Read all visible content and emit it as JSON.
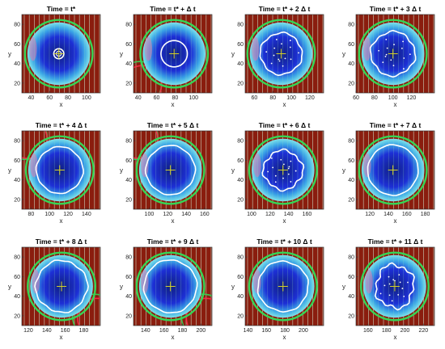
{
  "colors": {
    "background": "#8a1d0e",
    "stripe": "#cfe0c8",
    "blob_inner": "#1d2fd6",
    "blob_edge": "#7de3ea",
    "halo": "#35d655",
    "front": "#ffffff",
    "marker": "#d4d02a",
    "crescent": "#ff2a4a"
  },
  "chart_data": [
    {
      "type": "heatmap",
      "title": "Time = t*",
      "xlabel": "x",
      "ylabel": "y",
      "xticks": [
        40,
        60,
        80,
        100
      ],
      "yticks": [
        20,
        40,
        60,
        80
      ],
      "xlim": [
        30,
        115
      ],
      "ylim": [
        10,
        90
      ],
      "center": [
        70,
        50
      ]
    },
    {
      "type": "heatmap",
      "title": "Time = t* + Δ t",
      "xlabel": "x",
      "ylabel": "y",
      "xticks": [
        40,
        60,
        80,
        100
      ],
      "yticks": [
        20,
        40,
        60,
        80
      ],
      "xlim": [
        35,
        120
      ],
      "ylim": [
        10,
        90
      ],
      "center": [
        79,
        50
      ]
    },
    {
      "type": "heatmap",
      "title": "Time = t* + 2 Δ t",
      "xlabel": "x",
      "ylabel": "y",
      "xticks": [
        60,
        80,
        100,
        120
      ],
      "yticks": [
        20,
        40,
        60,
        80
      ],
      "xlim": [
        50,
        135
      ],
      "ylim": [
        10,
        90
      ],
      "center": [
        89,
        50
      ]
    },
    {
      "type": "heatmap",
      "title": "Time = t* + 3 Δ t",
      "xlabel": "x",
      "ylabel": "y",
      "xticks": [
        60,
        80,
        100,
        120
      ],
      "yticks": [
        20,
        40,
        60,
        80
      ],
      "xlim": [
        60,
        145
      ],
      "ylim": [
        10,
        90
      ],
      "center": [
        100,
        50
      ]
    },
    {
      "type": "heatmap",
      "title": "Time = t* + 4 Δ t",
      "xlabel": "x",
      "ylabel": "y",
      "xticks": [
        80,
        100,
        120,
        140
      ],
      "yticks": [
        20,
        40,
        60,
        80
      ],
      "xlim": [
        70,
        155
      ],
      "ylim": [
        10,
        90
      ],
      "center": [
        111,
        50
      ]
    },
    {
      "type": "heatmap",
      "title": "Time = t* + 5 Δ t",
      "xlabel": "x",
      "ylabel": "y",
      "xticks": [
        100,
        120,
        140,
        160
      ],
      "yticks": [
        20,
        40,
        60,
        80
      ],
      "xlim": [
        83,
        168
      ],
      "ylim": [
        10,
        90
      ],
      "center": [
        123,
        50
      ]
    },
    {
      "type": "heatmap",
      "title": "Time = t* + 6 Δ t",
      "xlabel": "x",
      "ylabel": "y",
      "xticks": [
        100,
        120,
        140,
        160
      ],
      "yticks": [
        20,
        40,
        60,
        80
      ],
      "xlim": [
        93,
        178
      ],
      "ylim": [
        10,
        90
      ],
      "center": [
        134,
        50
      ]
    },
    {
      "type": "heatmap",
      "title": "Time = t* + 7 Δ t",
      "xlabel": "x",
      "ylabel": "y",
      "xticks": [
        120,
        140,
        160,
        180
      ],
      "yticks": [
        20,
        40,
        60,
        80
      ],
      "xlim": [
        105,
        190
      ],
      "ylim": [
        10,
        90
      ],
      "center": [
        145,
        50
      ]
    },
    {
      "type": "heatmap",
      "title": "Time = t* + 8 Δ t",
      "xlabel": "x",
      "ylabel": "y",
      "xticks": [
        120,
        140,
        160,
        180
      ],
      "yticks": [
        20,
        40,
        60,
        80
      ],
      "xlim": [
        113,
        198
      ],
      "ylim": [
        10,
        90
      ],
      "center": [
        156,
        50
      ]
    },
    {
      "type": "heatmap",
      "title": "Time = t* + 9 Δ t",
      "xlabel": "x",
      "ylabel": "y",
      "xticks": [
        140,
        160,
        180,
        200
      ],
      "yticks": [
        20,
        40,
        60,
        80
      ],
      "xlim": [
        127,
        212
      ],
      "ylim": [
        10,
        90
      ],
      "center": [
        167,
        50
      ]
    },
    {
      "type": "heatmap",
      "title": "Time = t* + 10 Δ t",
      "xlabel": "x",
      "ylabel": "y",
      "xticks": [
        140,
        160,
        180,
        200
      ],
      "yticks": [
        20,
        40,
        60,
        80
      ],
      "xlim": [
        137,
        222
      ],
      "ylim": [
        10,
        90
      ],
      "center": [
        178,
        50
      ]
    },
    {
      "type": "heatmap",
      "title": "Time = t* + 11 Δ t",
      "xlabel": "x",
      "ylabel": "y",
      "xticks": [
        160,
        180,
        200,
        220
      ],
      "yticks": [
        20,
        40,
        60,
        80
      ],
      "xlim": [
        147,
        232
      ],
      "ylim": [
        10,
        90
      ],
      "center": [
        189,
        50
      ]
    }
  ]
}
